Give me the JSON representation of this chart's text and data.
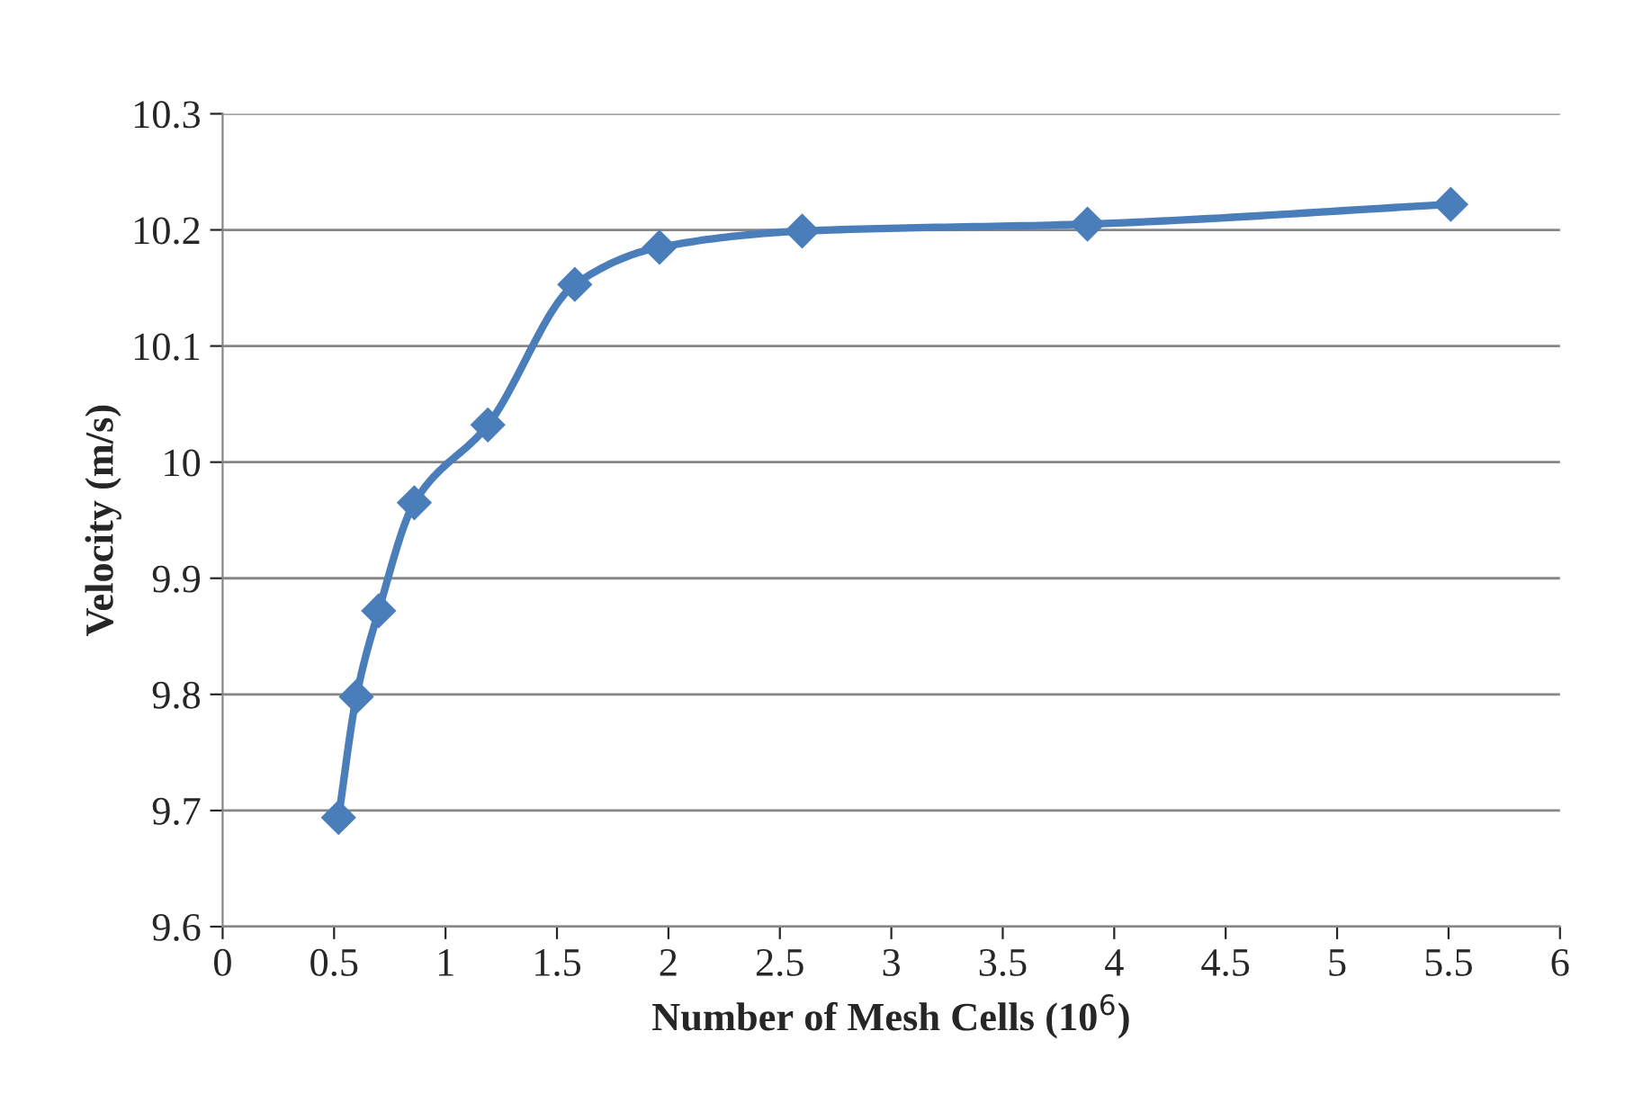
{
  "chart_data": {
    "type": "line",
    "xlabel": "Number of Mesh Cells (10$^{6}$)",
    "ylabel": "Velocity (m/s)",
    "x": [
      0.52,
      0.6,
      0.7,
      0.86,
      1.19,
      1.58,
      1.96,
      2.6,
      3.88,
      5.51
    ],
    "series": [
      {
        "color": "#4a7ebb",
        "values": [
          9.694,
          9.798,
          9.872,
          9.965,
          10.032,
          10.153,
          10.185,
          10.199,
          10.205,
          10.222
        ]
      }
    ],
    "xlim": [
      0,
      6
    ],
    "xticks": [
      0,
      0.5,
      1,
      1.5,
      2,
      2.5,
      3,
      3.5,
      4,
      4.5,
      5,
      5.5,
      6
    ],
    "ylim": [
      9.6,
      10.3
    ],
    "yticks": [
      9.6,
      9.7,
      9.8,
      9.9,
      10,
      10.1,
      10.2,
      10.3
    ],
    "grid": "y",
    "marker": "diamond",
    "line_style": "solid",
    "legend": false
  }
}
